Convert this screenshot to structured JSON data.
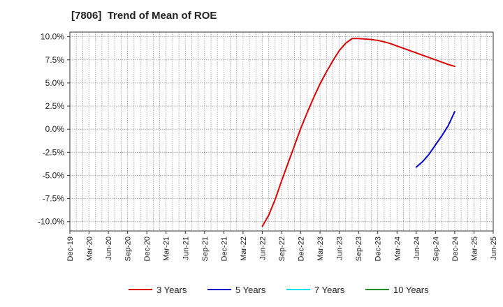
{
  "chart_data": {
    "type": "line",
    "title": "[7806]  Trend of Mean of ROE",
    "xlabel": "",
    "ylabel": "",
    "x_ticks": [
      "Dec-19",
      "Mar-20",
      "Jun-20",
      "Sep-20",
      "Dec-20",
      "Mar-21",
      "Jun-21",
      "Sep-21",
      "Dec-21",
      "Mar-22",
      "Jun-22",
      "Sep-22",
      "Dec-22",
      "Mar-23",
      "Jun-23",
      "Sep-23",
      "Dec-23",
      "Mar-24",
      "Jun-24",
      "Sep-24",
      "Dec-24",
      "Mar-25",
      "Jun-25"
    ],
    "y_ticks": [
      "10.0%",
      "7.5%",
      "5.0%",
      "2.5%",
      "0.0%",
      "-2.5%",
      "-5.0%",
      "-7.5%",
      "-10.0%"
    ],
    "ylim": [
      -11.0,
      10.5
    ],
    "grid": true,
    "legend_position": "bottom",
    "series": [
      {
        "name": "3 Years",
        "color": "#dd0000",
        "points": [
          [
            "Jun-22",
            -10.5
          ],
          [
            "Jul-22",
            -9.3
          ],
          [
            "Aug-22",
            -7.6
          ],
          [
            "Sep-22",
            -5.6
          ],
          [
            "Oct-22",
            -3.7
          ],
          [
            "Nov-22",
            -1.8
          ],
          [
            "Dec-22",
            0.1
          ],
          [
            "Jan-23",
            1.8
          ],
          [
            "Feb-23",
            3.4
          ],
          [
            "Mar-23",
            4.9
          ],
          [
            "Apr-23",
            6.2
          ],
          [
            "May-23",
            7.4
          ],
          [
            "Jun-23",
            8.5
          ],
          [
            "Jul-23",
            9.3
          ],
          [
            "Aug-23",
            9.8
          ],
          [
            "Sep-23",
            9.8
          ],
          [
            "Oct-23",
            9.75
          ],
          [
            "Nov-23",
            9.7
          ],
          [
            "Dec-23",
            9.6
          ],
          [
            "Jan-24",
            9.45
          ],
          [
            "Feb-24",
            9.25
          ],
          [
            "Mar-24",
            9.0
          ],
          [
            "Apr-24",
            8.75
          ],
          [
            "May-24",
            8.5
          ],
          [
            "Jun-24",
            8.25
          ],
          [
            "Jul-24",
            8.0
          ],
          [
            "Aug-24",
            7.75
          ],
          [
            "Sep-24",
            7.5
          ],
          [
            "Oct-24",
            7.25
          ],
          [
            "Nov-24",
            7.0
          ],
          [
            "Dec-24",
            6.8
          ]
        ]
      },
      {
        "name": "5 Years",
        "color": "#0000cc",
        "points": [
          [
            "Jun-24",
            -4.1
          ],
          [
            "Jul-24",
            -3.5
          ],
          [
            "Aug-24",
            -2.7
          ],
          [
            "Sep-24",
            -1.7
          ],
          [
            "Oct-24",
            -0.7
          ],
          [
            "Nov-24",
            0.4
          ],
          [
            "Dec-24",
            1.9
          ]
        ]
      },
      {
        "name": "7 Years",
        "color": "#00e5ee",
        "points": []
      },
      {
        "name": "10 Years",
        "color": "#228b22",
        "points": []
      }
    ]
  }
}
